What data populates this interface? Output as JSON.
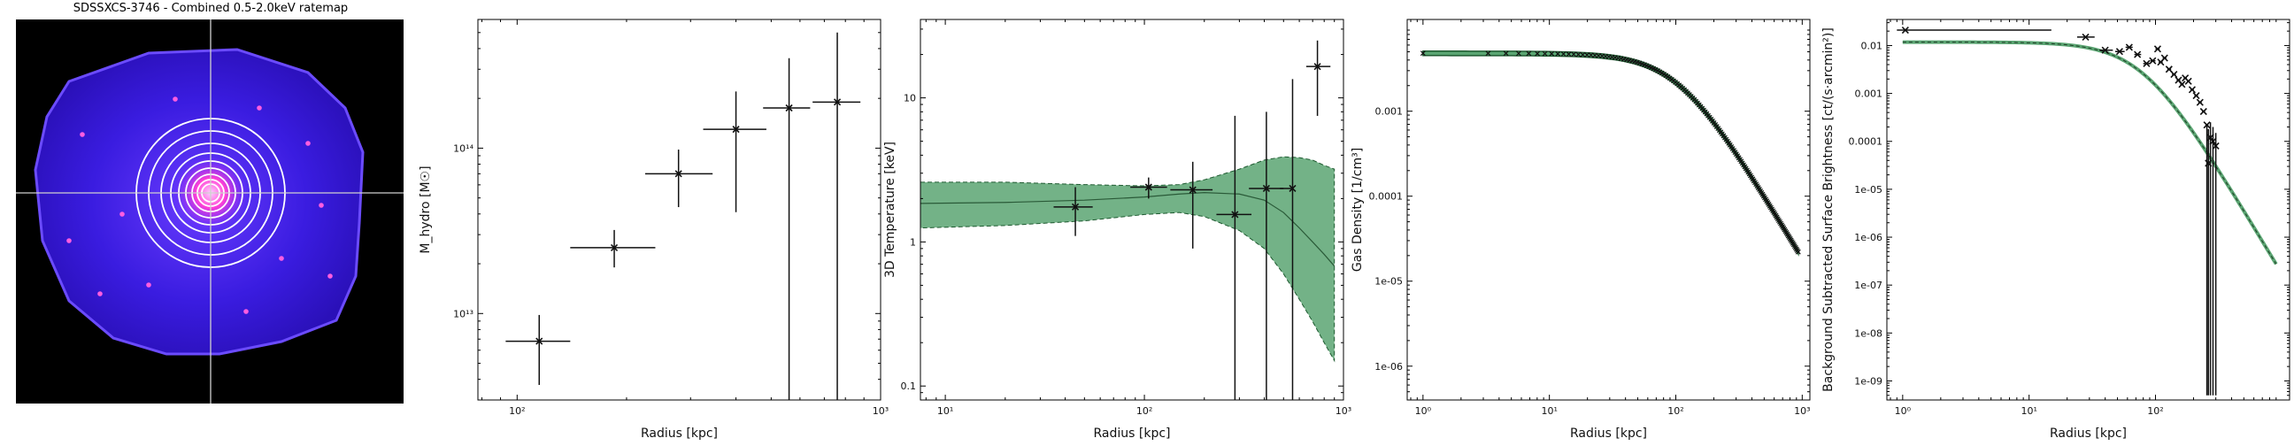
{
  "image_title": "SDSSXCS-3746 - Combined 0.5-2.0keV ratemap",
  "chart_data": [
    {
      "type": "image",
      "title": "SDSSXCS-3746 - Combined 0.5-2.0keV ratemap",
      "colors": {
        "background": "#000000",
        "source": "#3a1cff",
        "rings": "#ffffff",
        "crosshair": "#cfcfcf"
      },
      "annuli_count": 9
    },
    {
      "type": "scatter",
      "title": "",
      "xlabel": "Radius [kpc]",
      "ylabel": "M_hydro [M☉]",
      "xscale": "log",
      "yscale": "log",
      "xlim": [
        78,
        1000
      ],
      "ylim": [
        3000000000000.0,
        600000000000000.0
      ],
      "xticks": [
        {
          "v": 100,
          "label": "10²"
        },
        {
          "v": 1000,
          "label": "10³"
        }
      ],
      "yticks": [
        {
          "v": 10000000000000.0,
          "label": "10¹³"
        },
        {
          "v": 100000000000000.0,
          "label": "10¹⁴"
        }
      ],
      "points": [
        {
          "x": 115,
          "y": 6800000000000.0,
          "xlo": 93,
          "xhi": 140,
          "ylo": 3700000000000.0,
          "yhi": 9800000000000.0
        },
        {
          "x": 185,
          "y": 25000000000000.0,
          "xlo": 140,
          "xhi": 240,
          "ylo": 19000000000000.0,
          "yhi": 32000000000000.0
        },
        {
          "x": 278,
          "y": 70000000000000.0,
          "xlo": 225,
          "xhi": 345,
          "ylo": 44000000000000.0,
          "yhi": 98000000000000.0
        },
        {
          "x": 400,
          "y": 130000000000000.0,
          "xlo": 325,
          "xhi": 485,
          "ylo": 41000000000000.0,
          "yhi": 220000000000000.0
        },
        {
          "x": 560,
          "y": 175000000000000.0,
          "xlo": 475,
          "xhi": 640,
          "ylo": 3000000000000.0,
          "yhi": 350000000000000.0
        },
        {
          "x": 760,
          "y": 190000000000000.0,
          "xlo": 650,
          "xhi": 880,
          "ylo": 3000000000000.0,
          "yhi": 500000000000000.0
        }
      ]
    },
    {
      "type": "line",
      "title": "",
      "xlabel": "Radius [kpc]",
      "ylabel": "3D Temperature [keV]",
      "xscale": "log",
      "yscale": "log",
      "xlim": [
        7.5,
        1000
      ],
      "ylim": [
        0.08,
        35
      ],
      "xticks": [
        {
          "v": 10,
          "label": "10¹"
        },
        {
          "v": 100,
          "label": "10²"
        },
        {
          "v": 1000,
          "label": "10³"
        }
      ],
      "yticks": [
        {
          "v": 0.1,
          "label": "0.1"
        },
        {
          "v": 1,
          "label": "1"
        },
        {
          "v": 10,
          "label": "10"
        }
      ],
      "band_color": "#5aa572",
      "model_x": [
        7.5,
        20,
        50,
        100,
        150,
        200,
        300,
        400,
        500,
        600,
        700,
        800,
        900
      ],
      "model_y": [
        1.85,
        1.88,
        1.95,
        2.05,
        2.15,
        2.2,
        2.15,
        1.95,
        1.6,
        1.25,
        1.0,
        0.82,
        0.68
      ],
      "band_hi": [
        2.6,
        2.6,
        2.5,
        2.45,
        2.5,
        2.7,
        3.2,
        3.7,
        3.9,
        3.85,
        3.7,
        3.4,
        3.2
      ],
      "band_lo": [
        1.25,
        1.3,
        1.4,
        1.55,
        1.6,
        1.5,
        1.2,
        0.9,
        0.6,
        0.4,
        0.28,
        0.2,
        0.15
      ],
      "points": [
        {
          "x": 45,
          "y": 1.75,
          "xlo": 35,
          "xhi": 55,
          "ylo": 1.1,
          "yhi": 2.4
        },
        {
          "x": 105,
          "y": 2.4,
          "xlo": 85,
          "xhi": 130,
          "ylo": 2.0,
          "yhi": 2.8
        },
        {
          "x": 175,
          "y": 2.3,
          "xlo": 135,
          "xhi": 220,
          "ylo": 0.9,
          "yhi": 3.6
        },
        {
          "x": 285,
          "y": 1.55,
          "xlo": 230,
          "xhi": 345,
          "ylo": 0.08,
          "yhi": 7.5
        },
        {
          "x": 410,
          "y": 2.35,
          "xlo": 335,
          "xhi": 500,
          "ylo": 0.08,
          "yhi": 8.0
        },
        {
          "x": 555,
          "y": 2.35,
          "xlo": 480,
          "xhi": 560,
          "ylo": 0.08,
          "yhi": 13.5
        },
        {
          "x": 740,
          "y": 16.5,
          "xlo": 650,
          "xhi": 860,
          "ylo": 7.5,
          "yhi": 25
        }
      ]
    },
    {
      "type": "line",
      "title": "",
      "xlabel": "Radius [kpc]",
      "ylabel": "Gas Density [1/cm³]",
      "xscale": "log",
      "yscale": "log",
      "xlim": [
        0.75,
        1150
      ],
      "ylim": [
        4e-07,
        0.012
      ],
      "xticks": [
        {
          "v": 1,
          "label": "10⁰"
        },
        {
          "v": 10,
          "label": "10¹"
        },
        {
          "v": 100,
          "label": "10²"
        },
        {
          "v": 1000,
          "label": "10³"
        }
      ],
      "yticks": [
        {
          "v": 1e-06,
          "label": "1e-06"
        },
        {
          "v": 1e-05,
          "label": "1e-05"
        },
        {
          "v": 0.0001,
          "label": "0.0001"
        },
        {
          "v": 0.001,
          "label": "0.001"
        }
      ],
      "band_color": "#5aa572",
      "model": {
        "n0": 0.0048,
        "rc": 105,
        "beta": 0.82
      },
      "markers": {
        "rmin": 1,
        "rmax": 930,
        "count": 150
      }
    },
    {
      "type": "scatter",
      "title": "",
      "xlabel": "Radius [kpc]",
      "ylabel": "Background Subtracted Surface Brightness [ct/(s·arcmin²)]",
      "xscale": "log",
      "yscale": "log",
      "xlim": [
        0.75,
        1150
      ],
      "ylim": [
        4e-10,
        0.035
      ],
      "xticks": [
        {
          "v": 1,
          "label": "10⁰"
        },
        {
          "v": 10,
          "label": "10¹"
        },
        {
          "v": 100,
          "label": "10²"
        }
      ],
      "yticks": [
        {
          "v": 1e-09,
          "label": "1e-09"
        },
        {
          "v": 1e-08,
          "label": "1e-08"
        },
        {
          "v": 1e-07,
          "label": "1e-07"
        },
        {
          "v": 1e-06,
          "label": "1e-06"
        },
        {
          "v": 1e-05,
          "label": "1e-05"
        },
        {
          "v": 0.0001,
          "label": "0.0001"
        },
        {
          "v": 0.001,
          "label": "0.001"
        },
        {
          "v": 0.01,
          "label": "0.01"
        }
      ],
      "band_color": "#5aa572",
      "model": {
        "s0": 0.0118,
        "rc": 80,
        "beta": 0.9
      },
      "points": [
        {
          "x": 1.05,
          "y": 0.021,
          "xlo": 0.9,
          "xhi": 15,
          "ylo": 0.021,
          "yhi": 0.021
        },
        {
          "x": 28,
          "y": 0.015,
          "xlo": 24,
          "xhi": 33,
          "ylo": 0.015,
          "yhi": 0.015
        },
        {
          "x": 40,
          "y": 0.008,
          "xlo": 36,
          "xhi": 46,
          "ylo": 0.008,
          "yhi": 0.008
        },
        {
          "x": 52,
          "y": 0.0075,
          "xlo": 48,
          "xhi": 57,
          "ylo": 0.0075,
          "yhi": 0.0075
        },
        {
          "x": 62,
          "y": 0.0092,
          "xlo": 58,
          "xhi": 66,
          "ylo": 0.0092,
          "yhi": 0.0092
        },
        {
          "x": 72,
          "y": 0.0065,
          "xlo": 68,
          "xhi": 77,
          "ylo": 0.0065,
          "yhi": 0.0065
        },
        {
          "x": 85,
          "y": 0.0042,
          "xlo": 80,
          "xhi": 90,
          "ylo": 0.0042,
          "yhi": 0.0042
        },
        {
          "x": 95,
          "y": 0.0048,
          "xlo": 91,
          "xhi": 100,
          "ylo": 0.0048,
          "yhi": 0.0048
        },
        {
          "x": 104,
          "y": 0.0085,
          "xlo": 100,
          "xhi": 108,
          "ylo": 0.0085,
          "yhi": 0.0085
        },
        {
          "x": 110,
          "y": 0.0045,
          "xlo": 106,
          "xhi": 114,
          "ylo": 0.0045,
          "yhi": 0.0045
        },
        {
          "x": 118,
          "y": 0.0055,
          "xlo": 114,
          "xhi": 122,
          "ylo": 0.0055,
          "yhi": 0.0055
        },
        {
          "x": 128,
          "y": 0.0032,
          "xlo": 124,
          "xhi": 133,
          "ylo": 0.0032,
          "yhi": 0.0032
        },
        {
          "x": 140,
          "y": 0.0025,
          "xlo": 135,
          "xhi": 145,
          "ylo": 0.0025,
          "yhi": 0.0025
        },
        {
          "x": 152,
          "y": 0.0019,
          "xlo": 147,
          "xhi": 157,
          "ylo": 0.0019,
          "yhi": 0.0019
        },
        {
          "x": 162,
          "y": 0.00155,
          "xlo": 157,
          "xhi": 167,
          "ylo": 0.00155,
          "yhi": 0.00155
        },
        {
          "x": 172,
          "y": 0.0021,
          "xlo": 167,
          "xhi": 177,
          "ylo": 0.0021,
          "yhi": 0.0021
        },
        {
          "x": 182,
          "y": 0.0018,
          "xlo": 177,
          "xhi": 187,
          "ylo": 0.0018,
          "yhi": 0.0018
        },
        {
          "x": 195,
          "y": 0.0012,
          "xlo": 189,
          "xhi": 201,
          "ylo": 0.0012,
          "yhi": 0.0012
        },
        {
          "x": 210,
          "y": 0.0009,
          "xlo": 203,
          "xhi": 217,
          "ylo": 0.0009,
          "yhi": 0.0009
        },
        {
          "x": 225,
          "y": 0.00065,
          "xlo": 218,
          "xhi": 232,
          "ylo": 0.00065,
          "yhi": 0.00065
        },
        {
          "x": 240,
          "y": 0.00042,
          "xlo": 233,
          "xhi": 247,
          "ylo": 0.00042,
          "yhi": 0.00042
        },
        {
          "x": 255,
          "y": 0.00022,
          "xlo": 248,
          "xhi": 262,
          "ylo": 5e-10,
          "yhi": 0.00022
        },
        {
          "x": 262,
          "y": 3.5e-05,
          "xlo": 256,
          "xhi": 268,
          "ylo": 5e-10,
          "yhi": 0.00018
        },
        {
          "x": 272,
          "y": 0.00012,
          "xlo": 266,
          "xhi": 278,
          "ylo": 5e-10,
          "yhi": 0.00025
        },
        {
          "x": 285,
          "y": 0.0001,
          "xlo": 279,
          "xhi": 291,
          "ylo": 5e-10,
          "yhi": 0.0002
        },
        {
          "x": 300,
          "y": 8e-05,
          "xlo": 293,
          "xhi": 307,
          "ylo": 5e-10,
          "yhi": 0.00015
        }
      ]
    }
  ]
}
